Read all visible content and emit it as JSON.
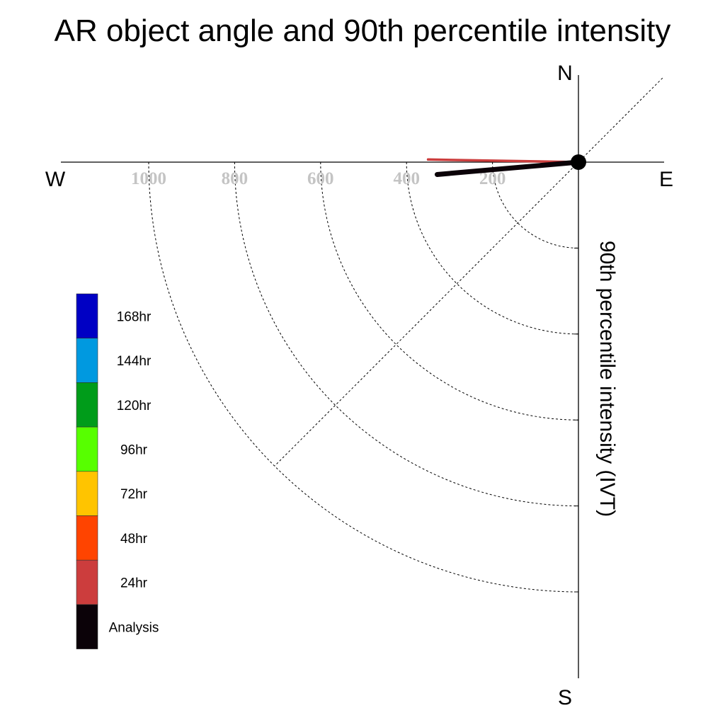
{
  "chart_data": {
    "type": "polar-vector",
    "title": "AR object angle and 90th percentile intensity",
    "ylabel": "90th percentile intensity (IVT)",
    "compass": {
      "north": "N",
      "south": "S",
      "east": "E",
      "west": "W"
    },
    "radial_ticks": [
      {
        "value": 200,
        "label": "200"
      },
      {
        "value": 400,
        "label": "400"
      },
      {
        "value": 600,
        "label": "600"
      },
      {
        "value": 800,
        "label": "800"
      },
      {
        "value": 1000,
        "label": "1000"
      }
    ],
    "rmax": 1000,
    "series": [
      {
        "name": "Analysis",
        "angle_deg": 265,
        "intensity": 330,
        "color": "#0b0208"
      },
      {
        "name": "24hr",
        "angle_deg": 271,
        "intensity": 350,
        "color": "#cc3d3d"
      }
    ],
    "legend": {
      "placement": "left",
      "items": [
        {
          "label": "168hr",
          "color": "#0000c4"
        },
        {
          "label": "144hr",
          "color": "#0099e0"
        },
        {
          "label": "120hr",
          "color": "#009c1a"
        },
        {
          "label": "96hr",
          "color": "#57ff00"
        },
        {
          "label": "72hr",
          "color": "#ffc400"
        },
        {
          "label": "48hr",
          "color": "#ff4400"
        },
        {
          "label": "24hr",
          "color": "#cc3d3d"
        },
        {
          "label": "Analysis",
          "color": "#0b0208"
        }
      ]
    }
  }
}
